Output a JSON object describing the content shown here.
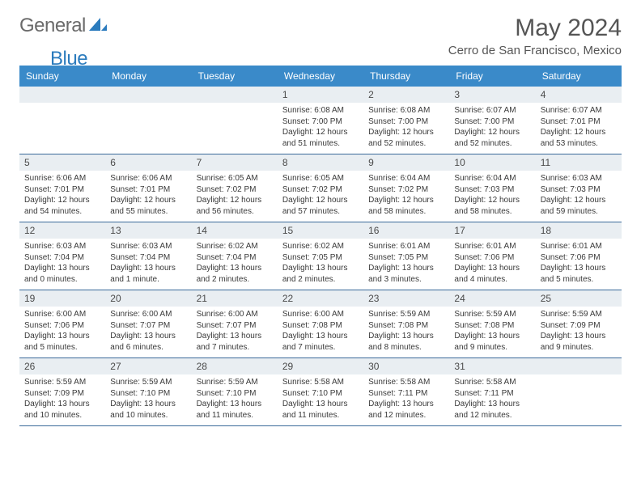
{
  "logo": {
    "part1": "General",
    "part2": "Blue"
  },
  "title": "May 2024",
  "location": "Cerro de San Francisco, Mexico",
  "colors": {
    "header_bg": "#3a8ac9",
    "daynum_bg": "#e9eef2",
    "row_border": "#3a6a9a",
    "text_dark": "#3a3a3a",
    "title_gray": "#555555",
    "logo_gray": "#6a6a6a",
    "logo_blue": "#2b7bbd"
  },
  "day_headers": [
    "Sunday",
    "Monday",
    "Tuesday",
    "Wednesday",
    "Thursday",
    "Friday",
    "Saturday"
  ],
  "weeks": [
    [
      null,
      null,
      null,
      {
        "n": "1",
        "sunrise": "6:08 AM",
        "sunset": "7:00 PM",
        "daylight": "12 hours and 51 minutes."
      },
      {
        "n": "2",
        "sunrise": "6:08 AM",
        "sunset": "7:00 PM",
        "daylight": "12 hours and 52 minutes."
      },
      {
        "n": "3",
        "sunrise": "6:07 AM",
        "sunset": "7:00 PM",
        "daylight": "12 hours and 52 minutes."
      },
      {
        "n": "4",
        "sunrise": "6:07 AM",
        "sunset": "7:01 PM",
        "daylight": "12 hours and 53 minutes."
      }
    ],
    [
      {
        "n": "5",
        "sunrise": "6:06 AM",
        "sunset": "7:01 PM",
        "daylight": "12 hours and 54 minutes."
      },
      {
        "n": "6",
        "sunrise": "6:06 AM",
        "sunset": "7:01 PM",
        "daylight": "12 hours and 55 minutes."
      },
      {
        "n": "7",
        "sunrise": "6:05 AM",
        "sunset": "7:02 PM",
        "daylight": "12 hours and 56 minutes."
      },
      {
        "n": "8",
        "sunrise": "6:05 AM",
        "sunset": "7:02 PM",
        "daylight": "12 hours and 57 minutes."
      },
      {
        "n": "9",
        "sunrise": "6:04 AM",
        "sunset": "7:02 PM",
        "daylight": "12 hours and 58 minutes."
      },
      {
        "n": "10",
        "sunrise": "6:04 AM",
        "sunset": "7:03 PM",
        "daylight": "12 hours and 58 minutes."
      },
      {
        "n": "11",
        "sunrise": "6:03 AM",
        "sunset": "7:03 PM",
        "daylight": "12 hours and 59 minutes."
      }
    ],
    [
      {
        "n": "12",
        "sunrise": "6:03 AM",
        "sunset": "7:04 PM",
        "daylight": "13 hours and 0 minutes."
      },
      {
        "n": "13",
        "sunrise": "6:03 AM",
        "sunset": "7:04 PM",
        "daylight": "13 hours and 1 minute."
      },
      {
        "n": "14",
        "sunrise": "6:02 AM",
        "sunset": "7:04 PM",
        "daylight": "13 hours and 2 minutes."
      },
      {
        "n": "15",
        "sunrise": "6:02 AM",
        "sunset": "7:05 PM",
        "daylight": "13 hours and 2 minutes."
      },
      {
        "n": "16",
        "sunrise": "6:01 AM",
        "sunset": "7:05 PM",
        "daylight": "13 hours and 3 minutes."
      },
      {
        "n": "17",
        "sunrise": "6:01 AM",
        "sunset": "7:06 PM",
        "daylight": "13 hours and 4 minutes."
      },
      {
        "n": "18",
        "sunrise": "6:01 AM",
        "sunset": "7:06 PM",
        "daylight": "13 hours and 5 minutes."
      }
    ],
    [
      {
        "n": "19",
        "sunrise": "6:00 AM",
        "sunset": "7:06 PM",
        "daylight": "13 hours and 5 minutes."
      },
      {
        "n": "20",
        "sunrise": "6:00 AM",
        "sunset": "7:07 PM",
        "daylight": "13 hours and 6 minutes."
      },
      {
        "n": "21",
        "sunrise": "6:00 AM",
        "sunset": "7:07 PM",
        "daylight": "13 hours and 7 minutes."
      },
      {
        "n": "22",
        "sunrise": "6:00 AM",
        "sunset": "7:08 PM",
        "daylight": "13 hours and 7 minutes."
      },
      {
        "n": "23",
        "sunrise": "5:59 AM",
        "sunset": "7:08 PM",
        "daylight": "13 hours and 8 minutes."
      },
      {
        "n": "24",
        "sunrise": "5:59 AM",
        "sunset": "7:08 PM",
        "daylight": "13 hours and 9 minutes."
      },
      {
        "n": "25",
        "sunrise": "5:59 AM",
        "sunset": "7:09 PM",
        "daylight": "13 hours and 9 minutes."
      }
    ],
    [
      {
        "n": "26",
        "sunrise": "5:59 AM",
        "sunset": "7:09 PM",
        "daylight": "13 hours and 10 minutes."
      },
      {
        "n": "27",
        "sunrise": "5:59 AM",
        "sunset": "7:10 PM",
        "daylight": "13 hours and 10 minutes."
      },
      {
        "n": "28",
        "sunrise": "5:59 AM",
        "sunset": "7:10 PM",
        "daylight": "13 hours and 11 minutes."
      },
      {
        "n": "29",
        "sunrise": "5:58 AM",
        "sunset": "7:10 PM",
        "daylight": "13 hours and 11 minutes."
      },
      {
        "n": "30",
        "sunrise": "5:58 AM",
        "sunset": "7:11 PM",
        "daylight": "13 hours and 12 minutes."
      },
      {
        "n": "31",
        "sunrise": "5:58 AM",
        "sunset": "7:11 PM",
        "daylight": "13 hours and 12 minutes."
      },
      null
    ]
  ],
  "labels": {
    "sunrise_prefix": "Sunrise: ",
    "sunset_prefix": "Sunset: ",
    "daylight_prefix": "Daylight: "
  }
}
